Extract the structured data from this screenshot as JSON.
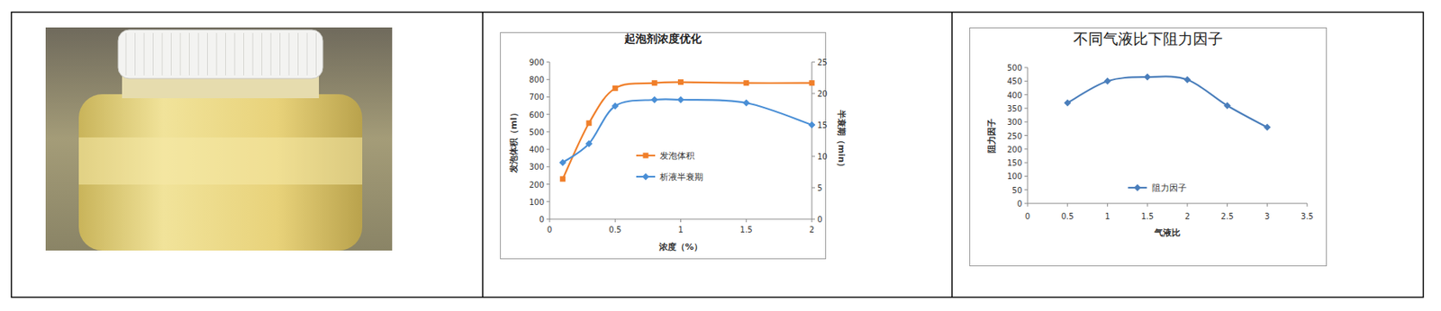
{
  "chart_data": [
    {
      "type": "line",
      "title": "起泡剂浓度优化",
      "x_label": "浓度（%）",
      "y_label": "发泡体积（ml）",
      "y2_label": "半衰期（min）",
      "x": [
        0.1,
        0.3,
        0.5,
        0.8,
        1,
        1.5,
        2
      ],
      "series": [
        {
          "name": "发泡体积",
          "color": "#f07f2a",
          "marker": "square",
          "values": [
            230,
            550,
            750,
            780,
            785,
            780,
            780
          ]
        },
        {
          "name": "析液半衰期",
          "color": "#4a8fd6",
          "marker": "diamond",
          "axis": "y2",
          "values": [
            9,
            12,
            18,
            19,
            19,
            18.5,
            15
          ]
        }
      ],
      "xlim": [
        0,
        2
      ],
      "xticks": [
        0,
        0.5,
        1,
        1.5,
        2
      ],
      "ylim": [
        0,
        900
      ],
      "yticks": [
        0,
        100,
        200,
        300,
        400,
        500,
        600,
        700,
        800,
        900
      ],
      "y2lim": [
        0,
        25
      ],
      "y2ticks": [
        0,
        5,
        10,
        15,
        20,
        25
      ],
      "grid": false,
      "legend": "center",
      "line_style": "smooth"
    },
    {
      "type": "line",
      "title": "不同气液比下阻力因子",
      "x_label": "气液比",
      "y_label": "阻力因子",
      "x": [
        0.5,
        1,
        1.5,
        2,
        2.5,
        3
      ],
      "series": [
        {
          "name": "阻力因子",
          "color": "#4a7ebb",
          "marker": "diamond",
          "values": [
            370,
            450,
            465,
            455,
            360,
            280
          ]
        }
      ],
      "xlim": [
        0,
        3.5
      ],
      "xticks": [
        0,
        0.5,
        1,
        1.5,
        2,
        2.5,
        3,
        3.5
      ],
      "ylim": [
        0,
        500
      ],
      "yticks": [
        0,
        50,
        100,
        150,
        200,
        250,
        300,
        350,
        400,
        450,
        500
      ],
      "grid": false,
      "legend": "bottom",
      "line_style": "smooth"
    }
  ]
}
